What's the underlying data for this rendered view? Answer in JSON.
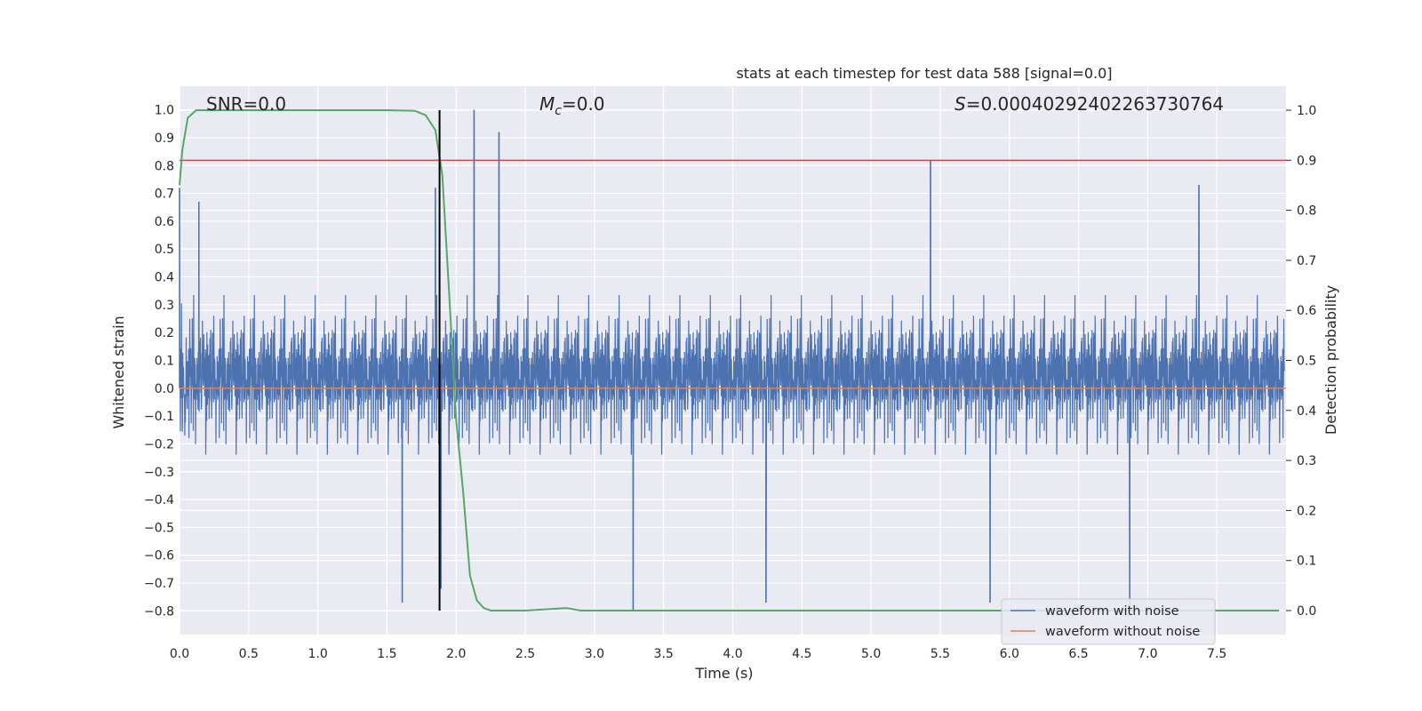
{
  "chart_data": {
    "type": "line",
    "title": "stats at each timestep for test data 588 [signal=0.0]",
    "xlabel": "Time (s)",
    "ylabel_left": "Whitened strain",
    "ylabel_right": "Detection probability",
    "xlim": [
      0.0,
      8.0
    ],
    "ylim_left": [
      -0.885,
      1.085
    ],
    "ylim_right": [
      -0.048,
      1.048
    ],
    "x_ticks": [
      "0.0",
      "0.5",
      "1.0",
      "1.5",
      "2.0",
      "2.5",
      "3.0",
      "3.5",
      "4.0",
      "4.5",
      "5.0",
      "5.5",
      "6.0",
      "6.5",
      "7.0",
      "7.5"
    ],
    "left_ticks": [
      "1.0",
      "0.9",
      "0.8",
      "0.7",
      "0.6",
      "0.5",
      "0.4",
      "0.3",
      "0.2",
      "0.1",
      "0.0",
      "−0.1",
      "−0.2",
      "−0.3",
      "−0.4",
      "−0.5",
      "−0.6",
      "−0.7",
      "−0.8"
    ],
    "right_ticks": [
      "1.0",
      "0.9",
      "0.8",
      "0.7",
      "0.6",
      "0.5",
      "0.4",
      "0.3",
      "0.2",
      "0.1",
      "0.0"
    ],
    "annotations": {
      "snr": "SNR=0.0",
      "mc_symbol": "M",
      "mc_sub": "c",
      "mc_value": "=0.0",
      "s_symbol": "S",
      "s_value": "=0.00040292402263730764"
    },
    "vertical_line_x": 1.88,
    "threshold_probability": 0.9,
    "grid": true,
    "legend_position": "lower right",
    "series": [
      {
        "name": "waveform with noise",
        "color": "#4c72b0",
        "description_note": "dense noise, typical amplitude ±0.4, peaks up to 1.0 at t≈2.13 and down to −0.80 at t≈3.28",
        "peaks": [
          [
            0.0,
            0.72
          ],
          [
            0.14,
            0.67
          ],
          [
            1.85,
            0.72
          ],
          [
            2.13,
            1.0
          ],
          [
            2.31,
            0.92
          ],
          [
            5.43,
            0.82
          ],
          [
            7.37,
            0.73
          ]
        ],
        "troughs": [
          [
            1.61,
            -0.77
          ],
          [
            1.89,
            -0.72
          ],
          [
            3.28,
            -0.8
          ],
          [
            4.24,
            -0.77
          ],
          [
            5.86,
            -0.77
          ],
          [
            6.87,
            -0.79
          ]
        ]
      },
      {
        "name": "waveform without noise",
        "color": "#dd8452",
        "x": [
          0.0,
          8.0
        ],
        "y": [
          0.0,
          0.0
        ]
      },
      {
        "name": "Detection probability",
        "color": "#55a868",
        "x": [
          0.0,
          0.02,
          0.06,
          0.12,
          0.2,
          0.5,
          1.0,
          1.5,
          1.7,
          1.78,
          1.85,
          1.9,
          1.95,
          2.0,
          2.05,
          2.1,
          2.15,
          2.2,
          2.25,
          2.3,
          2.5,
          2.8,
          2.9,
          3.0,
          3.5,
          5.0,
          7.0,
          7.95
        ],
        "y": [
          0.85,
          0.92,
          0.985,
          1.0,
          1.0,
          1.0,
          1.0,
          1.0,
          0.999,
          0.99,
          0.96,
          0.87,
          0.63,
          0.38,
          0.24,
          0.07,
          0.02,
          0.005,
          0.0,
          0.0,
          0.0,
          0.005,
          0.0,
          0.0,
          0.0,
          0.0,
          0.0,
          0.0
        ]
      }
    ],
    "legend": [
      {
        "label": "waveform with noise",
        "color": "#4c72b0"
      },
      {
        "label": "waveform without noise",
        "color": "#dd8452"
      }
    ],
    "colors": {
      "plot_background": "#eaeaf2",
      "grid": "#ffffff",
      "threshold_line": "#c44e52",
      "vertical_line": "#000000"
    }
  }
}
